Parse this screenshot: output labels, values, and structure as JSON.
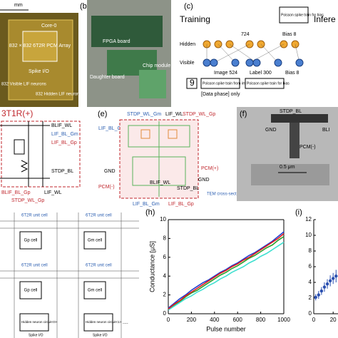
{
  "a": {
    "scale": "mm",
    "core": "Core-0",
    "array": "832 × 832 6T2R PCM Array",
    "spike": "Spike I/O",
    "visible": "832 Visible LIF neurons",
    "hidden": "832 Hidden LIF neurons"
  },
  "b": {
    "label": "(b)",
    "fpga": "FPGA board",
    "daughter": "Daughter board",
    "chip": "Chip module"
  },
  "c": {
    "label": "(c)",
    "training": "Training",
    "inference": "Infere",
    "n_hidden": "724",
    "bias_top": "Bias 8",
    "hidden": "Hidden",
    "visible": "Visible",
    "image": "Image 524",
    "label_n": "Label 300",
    "bias_bottom": "Bias 8",
    "poisson_bias_top": "Poisson spike train for bias",
    "poisson_image": "Poisson spike train from image",
    "poisson_bias": "Poisson spike train for bias",
    "phase": "[Data phase] only",
    "digit": "9"
  },
  "d": {
    "title": "3T1R(+)",
    "blif_wl": "BLIF_WL",
    "lif_bl_gm": "LIF_BL_Gm",
    "lif_bl_gp": "LIF_BL_Gp",
    "stdp_bl": "STDP_BL",
    "blif_bl_gp": "BLIF_BL_Gp",
    "lif_wl": "LIF_WL",
    "stdp_wl_gp": "STDP_WL_Gp"
  },
  "e": {
    "label": "(e)",
    "stdp_wl_gm": "STDP_WL_Gm",
    "lif_wl": "LIF_WL",
    "stdp_wl_gp": "STDP_WL_Gp",
    "lif_bl_gp_top": "LIF_BL_Gp",
    "pcm_plus": "PCM(+)",
    "gnd_left": "GND",
    "gnd_right": "GND",
    "blif_wl": "BLIF_WL",
    "pcm_minus": "PCM(-)",
    "stdp_bl": "STDP_BL",
    "lif_bl_gm": "LIF_BL_Gm",
    "lif_bl_gp": "LIF_BL_Gp",
    "tem": "TEM cross-section line"
  },
  "f": {
    "label": "(f)",
    "stdp_bl": "STDP_BL",
    "gnd": "GND",
    "bli": "BLI",
    "pcm": "PCM(-)",
    "scale": "0.5 μm"
  },
  "g": {
    "unit_cell": "6T2R unit cell",
    "gp": "Gp cell",
    "gm": "Gm cell",
    "hidden0": "Hidden neuron circuit<0>",
    "hidden1": "Hidden neuron circuit<1>",
    "spike": "Spike I/O",
    "dots": "...."
  },
  "chart_data": [
    {
      "type": "line",
      "label": "(h)",
      "xlabel": "Pulse number",
      "ylabel": "Conductance [μS]",
      "x": [
        0,
        50,
        100,
        150,
        200,
        250,
        300,
        350,
        400,
        450,
        500,
        550,
        600,
        650,
        700,
        750,
        800,
        850,
        900,
        950,
        1000
      ],
      "xlim": [
        0,
        1000
      ],
      "xticks": [
        0,
        200,
        400,
        600,
        800,
        1000
      ],
      "ylim": [
        0,
        10
      ],
      "yticks": [
        0,
        2,
        4,
        6,
        8,
        10
      ],
      "series": [
        {
          "color": "#1f3fd0",
          "values": [
            0.6,
            1.1,
            1.6,
            2.0,
            2.5,
            2.9,
            3.3,
            3.6,
            4.0,
            4.4,
            4.7,
            5.1,
            5.4,
            5.8,
            6.2,
            6.5,
            6.9,
            7.3,
            7.7,
            8.2,
            8.7
          ]
        },
        {
          "color": "#2ca02c",
          "values": [
            0.5,
            0.9,
            1.3,
            1.8,
            2.2,
            2.5,
            2.9,
            3.3,
            3.7,
            4.1,
            4.4,
            4.8,
            5.1,
            5.5,
            5.9,
            6.2,
            6.6,
            7.0,
            7.3,
            7.8,
            8.2
          ]
        },
        {
          "color": "#40e0d0",
          "values": [
            0.4,
            0.8,
            1.2,
            1.6,
            1.9,
            2.3,
            2.6,
            3.0,
            3.3,
            3.7,
            4.0,
            4.4,
            4.7,
            5.0,
            5.4,
            5.7,
            6.1,
            6.4,
            6.8,
            7.2,
            7.6
          ]
        },
        {
          "color": "#e41a1c",
          "values": [
            0.5,
            1.0,
            1.4,
            1.9,
            2.3,
            2.7,
            3.1,
            3.5,
            3.9,
            4.3,
            4.6,
            5.0,
            5.3,
            5.7,
            6.0,
            6.4,
            6.8,
            7.2,
            7.6,
            8.0,
            8.5
          ]
        }
      ]
    },
    {
      "type": "errorbar",
      "label": "(i)",
      "color": "#2a4fb0",
      "x": [
        2,
        5,
        8,
        11,
        14,
        17,
        20,
        23
      ],
      "values": [
        2.1,
        2.4,
        2.9,
        3.4,
        3.8,
        4.2,
        4.5,
        4.8
      ],
      "errors": [
        0.4,
        0.5,
        0.5,
        0.6,
        0.6,
        0.7,
        0.7,
        0.8
      ],
      "xlim": [
        0,
        25
      ],
      "xticks": [
        0,
        20
      ],
      "ylim": [
        0,
        12
      ],
      "yticks": [
        0,
        2,
        4,
        6,
        8,
        10,
        12
      ]
    }
  ]
}
